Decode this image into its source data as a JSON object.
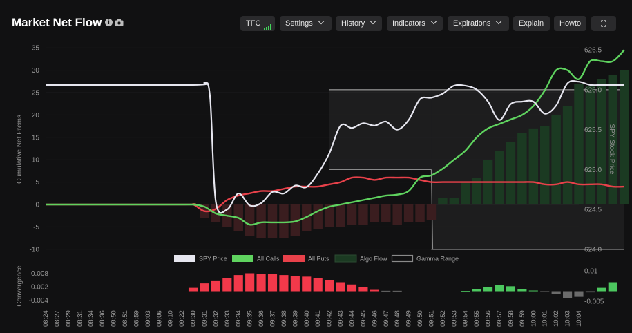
{
  "header": {
    "title": "Market Net Flow",
    "buttons": {
      "tfc": "TFC",
      "settings": "Settings",
      "history": "History",
      "indicators": "Indicators",
      "expirations": "Expirations",
      "explain": "Explain",
      "howto": "Howto"
    }
  },
  "colors": {
    "background": "#111112",
    "spy_price": "#e6e6ef",
    "all_calls": "#5fd35f",
    "all_puts": "#e8414a",
    "algo_flow_pos": "#1b3a22",
    "algo_flow_neg": "#3a1d1f",
    "gamma_range": "#8a8a8a",
    "conv_pos": "#f2394a",
    "conv_green": "#4cc75f",
    "conv_gray": "#6b6b6b"
  },
  "chart_data": [
    {
      "type": "line",
      "ylabel": "Cumulative Net Prems",
      "y2label": "SPY Stock Price",
      "ylim": [
        -10,
        35
      ],
      "yticks": [
        "35",
        "30",
        "25",
        "20",
        "15",
        "10",
        "5",
        "0",
        "-5",
        "-10"
      ],
      "y2lim": [
        624.0,
        626.5
      ],
      "y2ticks": [
        "626.5",
        "626.0",
        "625.5",
        "625.0",
        "624.5",
        "624.0"
      ],
      "legend": [
        "SPY Price",
        "All Calls",
        "All Puts",
        "Algo Flow",
        "Gamma Range"
      ],
      "legend_position": "bottom-center",
      "gamma_range": [
        {
          "t_start": 25,
          "t_end": 34,
          "low": 625.0,
          "high": 626.0
        },
        {
          "t_start": 34,
          "t_end": 51,
          "low": 624.0,
          "high": 626.0
        }
      ],
      "series": [
        {
          "name": "SPY Price",
          "axis": "right",
          "t": [
            0,
            13,
            14,
            14.5,
            15,
            16,
            17,
            18,
            19,
            20,
            21,
            22,
            23,
            24,
            25,
            26,
            27,
            28,
            29,
            30,
            31,
            32,
            33,
            34,
            35,
            36,
            37,
            38,
            39,
            40,
            41,
            42,
            43,
            44,
            45,
            46,
            47,
            48,
            49,
            50,
            51
          ],
          "values": [
            626.06,
            626.06,
            626.08,
            625.9,
            624.6,
            624.5,
            624.7,
            624.55,
            624.58,
            624.72,
            624.7,
            624.8,
            624.78,
            624.95,
            625.2,
            625.55,
            625.52,
            625.58,
            625.55,
            625.6,
            625.5,
            625.62,
            625.88,
            625.9,
            625.95,
            626.05,
            626.05,
            626.0,
            625.85,
            625.62,
            625.82,
            625.85,
            625.85,
            625.7,
            625.8,
            626.08,
            626.1,
            626.06,
            626.06,
            626.06,
            626.06
          ]
        },
        {
          "name": "All Calls",
          "axis": "left",
          "t": [
            0,
            12,
            13,
            14,
            15,
            16,
            17,
            18,
            19,
            20,
            21,
            22,
            23,
            24,
            25,
            26,
            27,
            28,
            29,
            30,
            31,
            32,
            33,
            34,
            35,
            36,
            37,
            38,
            39,
            40,
            41,
            42,
            43,
            44,
            45,
            46,
            47,
            48,
            49,
            50,
            51
          ],
          "values": [
            0,
            0,
            0,
            -0.5,
            -2,
            -2.5,
            -3,
            -4.5,
            -4,
            -4,
            -4,
            -3.8,
            -2.8,
            -1.5,
            -0.5,
            0,
            0.5,
            1,
            1.5,
            2,
            2.2,
            3,
            6,
            6.5,
            8,
            10,
            12,
            15,
            17,
            18,
            19,
            20,
            22,
            25.5,
            30,
            30,
            28,
            32,
            32,
            32,
            34.5
          ]
        },
        {
          "name": "All Puts",
          "axis": "left",
          "t": [
            0,
            12,
            13,
            14,
            15,
            16,
            17,
            18,
            19,
            20,
            21,
            22,
            23,
            24,
            25,
            26,
            27,
            28,
            29,
            30,
            31,
            32,
            33,
            34,
            35,
            36,
            37,
            38,
            39,
            40,
            41,
            42,
            43,
            44,
            45,
            46,
            47,
            48,
            49,
            50,
            51
          ],
          "values": [
            0,
            0,
            0,
            -1.5,
            -1,
            1,
            2,
            2.5,
            3,
            3,
            3.5,
            4,
            4,
            4,
            4.5,
            5,
            6,
            6,
            5.5,
            6,
            6,
            6,
            5.5,
            5,
            5,
            5,
            5,
            5,
            5,
            5,
            5,
            5,
            5,
            4.5,
            4.5,
            5,
            4.5,
            4.5,
            4.5,
            4,
            4
          ]
        },
        {
          "name": "Algo Flow",
          "axis": "left",
          "t": [
            14,
            15,
            16,
            17,
            18,
            19,
            20,
            21,
            22,
            23,
            24,
            25,
            26,
            27,
            28,
            29,
            30,
            31,
            32,
            33,
            34,
            35,
            36,
            37,
            38,
            39,
            40,
            41,
            42,
            43,
            44,
            45,
            46,
            47,
            48,
            49,
            50,
            51
          ],
          "values": [
            -3,
            -4,
            -5,
            -6,
            -7,
            -7.5,
            -7.5,
            -7.5,
            -7,
            -6,
            -5.5,
            -5,
            -5,
            -4.5,
            -4.5,
            -4,
            -4,
            -4.5,
            -4,
            -4,
            -3.5,
            1.5,
            1.5,
            5,
            6,
            10,
            12,
            14,
            16,
            17,
            17.5,
            20,
            22,
            27,
            26.5,
            28,
            29,
            30
          ]
        }
      ]
    },
    {
      "type": "bar",
      "ylabel": "Convergence",
      "y2label": "",
      "ylim": [
        -0.004,
        0.008
      ],
      "yticks": [
        "0.008",
        "0.002",
        "-0.004"
      ],
      "y2ticks": [
        "0.01",
        "-0.005"
      ],
      "categories": [
        "08:24",
        "08:27",
        "08:29",
        "08:31",
        "08:34",
        "08:36",
        "08:50",
        "08:51",
        "08:59",
        "09:03",
        "09:06",
        "09:10",
        "09:22",
        "09:30",
        "09:31",
        "09:32",
        "09:33",
        "09:34",
        "09:35",
        "09:36",
        "09:37",
        "09:38",
        "09:39",
        "09:40",
        "09:41",
        "09:42",
        "09:43",
        "09:44",
        "09:45",
        "09:46",
        "09:47",
        "09:48",
        "09:49",
        "09:50",
        "09:51",
        "09:52",
        "09:53",
        "09:54",
        "09:55",
        "09:56",
        "09:57",
        "09:58",
        "09:59",
        "10:00",
        "10:01",
        "10:02",
        "10:03",
        "10:04"
      ],
      "bars": [
        {
          "t": 13,
          "v": 0.0015,
          "c": "pos"
        },
        {
          "t": 14,
          "v": 0.0035,
          "c": "pos"
        },
        {
          "t": 15,
          "v": 0.0045,
          "c": "pos"
        },
        {
          "t": 16,
          "v": 0.006,
          "c": "pos"
        },
        {
          "t": 17,
          "v": 0.0072,
          "c": "pos"
        },
        {
          "t": 18,
          "v": 0.008,
          "c": "pos"
        },
        {
          "t": 19,
          "v": 0.0078,
          "c": "pos"
        },
        {
          "t": 20,
          "v": 0.0078,
          "c": "pos"
        },
        {
          "t": 21,
          "v": 0.0072,
          "c": "pos"
        },
        {
          "t": 22,
          "v": 0.0068,
          "c": "pos"
        },
        {
          "t": 23,
          "v": 0.0065,
          "c": "pos"
        },
        {
          "t": 24,
          "v": 0.006,
          "c": "pos"
        },
        {
          "t": 25,
          "v": 0.005,
          "c": "pos"
        },
        {
          "t": 26,
          "v": 0.004,
          "c": "pos"
        },
        {
          "t": 27,
          "v": 0.003,
          "c": "pos"
        },
        {
          "t": 28,
          "v": 0.0018,
          "c": "pos"
        },
        {
          "t": 29,
          "v": 0.0006,
          "c": "pos"
        },
        {
          "t": 30,
          "v": 0.0002,
          "c": "gray"
        },
        {
          "t": 31,
          "v": 0.0002,
          "c": "gray"
        },
        {
          "t": 37,
          "v": 0.0001,
          "c": "green"
        },
        {
          "t": 38,
          "v": 0.0008,
          "c": "green"
        },
        {
          "t": 39,
          "v": 0.002,
          "c": "green"
        },
        {
          "t": 40,
          "v": 0.0028,
          "c": "green"
        },
        {
          "t": 41,
          "v": 0.0022,
          "c": "green"
        },
        {
          "t": 42,
          "v": 0.001,
          "c": "green"
        },
        {
          "t": 43,
          "v": 0.0003,
          "c": "green"
        },
        {
          "t": 44,
          "v": -0.0003,
          "c": "gray"
        },
        {
          "t": 45,
          "v": -0.0012,
          "c": "gray"
        },
        {
          "t": 46,
          "v": -0.0032,
          "c": "gray"
        },
        {
          "t": 47,
          "v": -0.0025,
          "c": "gray"
        },
        {
          "t": 48,
          "v": -0.0005,
          "c": "gray"
        },
        {
          "t": 49,
          "v": 0.0015,
          "c": "green"
        },
        {
          "t": 50,
          "v": 0.004,
          "c": "green"
        }
      ]
    }
  ]
}
